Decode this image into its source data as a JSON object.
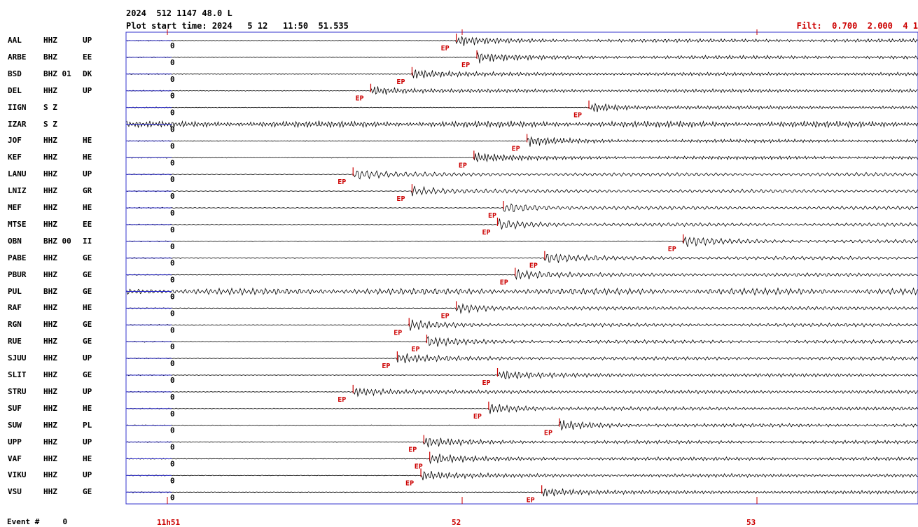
{
  "header": {
    "line1": "2024  512 1147 48.0 L",
    "line2": "Plot start time: 2024   5 12   11:50  51.535",
    "filter": "Filt:  0.700  2.000  4 1"
  },
  "pick_label": "EP",
  "zero_label": "0",
  "stations": [
    {
      "name": "AAL",
      "comp": "HHZ",
      "net": "UP",
      "pick_s": 0.98
    },
    {
      "name": "ARBE",
      "comp": "BHZ",
      "net": "EE",
      "pick_s": 1.05
    },
    {
      "name": "BSD",
      "comp": "BHZ 01",
      "net": "DK",
      "pick_s": 0.83
    },
    {
      "name": "DEL",
      "comp": "HHZ",
      "net": "UP",
      "pick_s": 0.69
    },
    {
      "name": "IIGN",
      "comp": "S Z",
      "net": "",
      "pick_s": 1.43
    },
    {
      "name": "IZAR",
      "comp": "S Z",
      "net": "",
      "pick_s": null
    },
    {
      "name": "JOF",
      "comp": "HHZ",
      "net": "HE",
      "pick_s": 1.22
    },
    {
      "name": "KEF",
      "comp": "HHZ",
      "net": "HE",
      "pick_s": 1.04
    },
    {
      "name": "LANU",
      "comp": "HHZ",
      "net": "UP",
      "pick_s": 0.63
    },
    {
      "name": "LNIZ",
      "comp": "HHZ",
      "net": "GR",
      "pick_s": 0.83
    },
    {
      "name": "MEF",
      "comp": "HHZ",
      "net": "HE",
      "pick_s": 1.14
    },
    {
      "name": "MTSE",
      "comp": "HHZ",
      "net": "EE",
      "pick_s": 1.12
    },
    {
      "name": "OBN",
      "comp": "BHZ 00",
      "net": "II",
      "pick_s": 1.75
    },
    {
      "name": "PABE",
      "comp": "HHZ",
      "net": "GE",
      "pick_s": 1.28
    },
    {
      "name": "PBUR",
      "comp": "HHZ",
      "net": "GE",
      "pick_s": 1.18
    },
    {
      "name": "PUL",
      "comp": "BHZ",
      "net": "GE",
      "pick_s": null
    },
    {
      "name": "RAF",
      "comp": "HHZ",
      "net": "HE",
      "pick_s": 0.98
    },
    {
      "name": "RGN",
      "comp": "HHZ",
      "net": "GE",
      "pick_s": 0.82
    },
    {
      "name": "RUE",
      "comp": "HHZ",
      "net": "GE",
      "pick_s": 0.88
    },
    {
      "name": "SJUU",
      "comp": "HHZ",
      "net": "UP",
      "pick_s": 0.78
    },
    {
      "name": "SLIT",
      "comp": "HHZ",
      "net": "GE",
      "pick_s": 1.12
    },
    {
      "name": "STRU",
      "comp": "HHZ",
      "net": "UP",
      "pick_s": 0.63
    },
    {
      "name": "SUF",
      "comp": "HHZ",
      "net": "HE",
      "pick_s": 1.09
    },
    {
      "name": "SUW",
      "comp": "HHZ",
      "net": "PL",
      "pick_s": 1.33
    },
    {
      "name": "UPP",
      "comp": "HHZ",
      "net": "UP",
      "pick_s": 0.87
    },
    {
      "name": "VAF",
      "comp": "HHZ",
      "net": "HE",
      "pick_s": 0.89
    },
    {
      "name": "VIKU",
      "comp": "HHZ",
      "net": "UP",
      "pick_s": 0.86
    },
    {
      "name": "VSU",
      "comp": "HHZ",
      "net": "GE",
      "pick_s": 1.27
    }
  ],
  "footer": {
    "event_label": "Event #     0",
    "time_labels": [
      {
        "text": "11h51",
        "t": 0
      },
      {
        "text": "52",
        "t": 1
      },
      {
        "text": "53",
        "t": 2
      }
    ]
  },
  "colors": {
    "trace": "#000000",
    "pick": "#cc0000",
    "axis": "#3333cc",
    "label": "#000000"
  }
}
